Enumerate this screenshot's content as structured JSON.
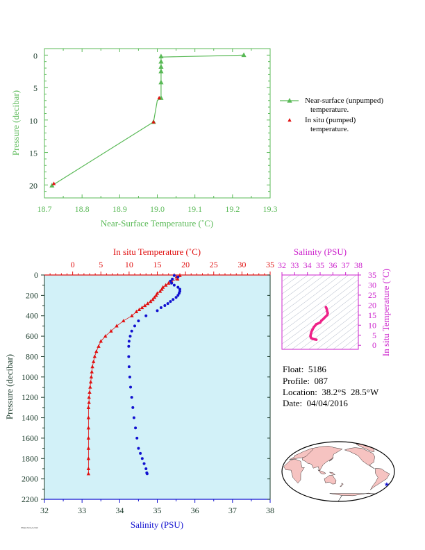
{
  "colors": {
    "green": "#59b956",
    "red": "#e01010",
    "blue": "#1010d0",
    "magenta": "#cc22cc",
    "axis_dark": "#1a3a2a",
    "plot_bg": "#d2f1f8",
    "land": "#f6c3c1",
    "ocean": "#ffffff"
  },
  "info": {
    "float_label": "Float:",
    "float": "5186",
    "profile_label": "Profile:",
    "profile": "087",
    "location_label": "Location:",
    "location": "38.2°S  28.5°W",
    "date_label": "Date:",
    "date": "04/04/2016"
  },
  "footer_text": "PMEL/NOAA 2016",
  "chart_data": [
    {
      "type": "line",
      "xlabel": "Near-Surface Temperature (˚C)",
      "ylabel": "Pressure (decibar)",
      "xlim": [
        18.7,
        19.3
      ],
      "ylim": [
        22,
        -1
      ],
      "xticks": [
        18.7,
        18.8,
        18.9,
        19.0,
        19.1,
        19.2,
        19.3
      ],
      "yticks": [
        0,
        5,
        10,
        15,
        20
      ],
      "legend_position": "right",
      "series": [
        {
          "name": "Near-surface (unpumped) temperature.",
          "color": "#59b956",
          "marker": "triangle",
          "x": [
            19.23,
            19.17,
            19.01,
            19.01,
            19.01,
            19.01,
            19.01,
            19.01,
            19.0,
            18.99,
            18.72
          ],
          "y": [
            0.0,
            0.1,
            0.3,
            1.0,
            1.8,
            2.5,
            4.2,
            6.6,
            7.0,
            10.3,
            20.1
          ],
          "marker_x": [
            19.23,
            19.01,
            19.01,
            19.01,
            19.01,
            19.01,
            19.01,
            18.99,
            18.72
          ],
          "marker_y": [
            0.0,
            0.2,
            1.0,
            1.8,
            2.5,
            4.2,
            6.6,
            10.3,
            20.1
          ]
        },
        {
          "name": "In situ (pumped) temperature.",
          "color": "#e01010",
          "marker": "triangle",
          "x": [
            19.005,
            18.99,
            18.725
          ],
          "y": [
            6.6,
            10.3,
            19.8
          ]
        }
      ]
    },
    {
      "type": "scatter",
      "title": "In situ Temperature (˚C)",
      "xlabel": "Salinity (PSU)",
      "ylabel": "Pressure (decibar)",
      "xlim": [
        32,
        38
      ],
      "x2lim": [
        -5,
        35
      ],
      "ylim": [
        2200,
        0
      ],
      "xticks": [
        32,
        33,
        34,
        35,
        36,
        37,
        38
      ],
      "x2ticks": [
        0,
        5,
        10,
        15,
        20,
        25,
        30,
        35
      ],
      "yticks": [
        0,
        200,
        400,
        600,
        800,
        1000,
        1200,
        1400,
        1600,
        1800,
        2000,
        2200
      ],
      "series": [
        {
          "name": "Temperature",
          "color": "#e01010",
          "marker": "triangle",
          "temperature": [
            19.0,
            18.4,
            18.6,
            17.5,
            17.0,
            16.5,
            16.0,
            15.8,
            15.5,
            15.0,
            14.8,
            14.5,
            14.2,
            13.8,
            13.3,
            12.8,
            12.3,
            11.8,
            11.3,
            10.5,
            9.0,
            7.8,
            6.8,
            5.8,
            5.0,
            4.6,
            4.2,
            3.9,
            3.7,
            3.5,
            3.4,
            3.3,
            3.2,
            3.1,
            3.0,
            2.9,
            2.9,
            2.8,
            2.8,
            2.8,
            2.8,
            2.8,
            2.8,
            2.8,
            2.8
          ],
          "pressure": [
            5,
            20,
            40,
            60,
            80,
            100,
            120,
            140,
            160,
            180,
            200,
            220,
            240,
            260,
            280,
            300,
            320,
            340,
            360,
            400,
            450,
            500,
            550,
            600,
            650,
            700,
            750,
            800,
            850,
            900,
            950,
            1000,
            1050,
            1100,
            1150,
            1200,
            1250,
            1300,
            1400,
            1500,
            1600,
            1700,
            1800,
            1900,
            1950
          ]
        },
        {
          "name": "Salinity",
          "color": "#1010d0",
          "marker": "circle",
          "salinity": [
            35.45,
            35.55,
            35.4,
            35.35,
            35.38,
            35.45,
            35.55,
            35.6,
            35.6,
            35.58,
            35.55,
            35.5,
            35.42,
            35.35,
            35.28,
            35.2,
            35.1,
            35.0,
            34.7,
            34.5,
            34.4,
            34.32,
            34.28,
            34.25,
            34.24,
            34.24,
            34.25,
            34.27,
            34.29,
            34.32,
            34.35,
            34.38,
            34.42,
            34.46,
            34.5,
            34.55,
            34.6,
            34.65,
            34.7,
            34.72,
            34.73
          ],
          "pressure": [
            5,
            20,
            40,
            60,
            80,
            100,
            120,
            140,
            160,
            180,
            200,
            220,
            240,
            260,
            280,
            300,
            320,
            350,
            400,
            450,
            500,
            550,
            600,
            650,
            700,
            800,
            900,
            1000,
            1100,
            1200,
            1300,
            1400,
            1500,
            1600,
            1700,
            1750,
            1800,
            1850,
            1900,
            1940,
            1950
          ]
        }
      ]
    },
    {
      "type": "scatter",
      "title": "Salinity (PSU)",
      "ylabel": "In situ Temperature (˚C)",
      "xlim": [
        32,
        38
      ],
      "ylim": [
        -2,
        35
      ],
      "xticks": [
        32,
        33,
        34,
        35,
        36,
        37,
        38
      ],
      "yticks": [
        0,
        5,
        10,
        15,
        20,
        25,
        30,
        35
      ],
      "series": [
        {
          "name": "T-S",
          "color": "#ee2288",
          "salinity": [
            35.45,
            35.5,
            35.55,
            35.6,
            35.55,
            35.42,
            35.28,
            35.1,
            35.0,
            34.7,
            34.5,
            34.4,
            34.32,
            34.28,
            34.25,
            34.24,
            34.27,
            34.32,
            34.42,
            34.55,
            34.7
          ],
          "temperature": [
            19.0,
            18.4,
            17.0,
            16.0,
            15.0,
            14.2,
            13.3,
            12.3,
            11.3,
            10.5,
            9.0,
            7.8,
            6.8,
            5.8,
            5.0,
            4.6,
            3.9,
            3.5,
            3.2,
            3.0,
            2.8
          ]
        }
      ]
    },
    {
      "type": "map",
      "marker": {
        "lat": -38.2,
        "lon": -28.5,
        "color": "#1010d0"
      }
    }
  ]
}
